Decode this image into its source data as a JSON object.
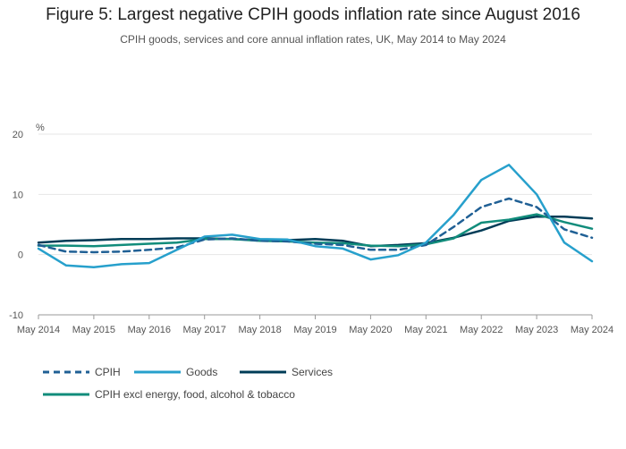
{
  "header": {
    "title": "Figure 5: Largest negative CPIH goods inflation rate since August 2016",
    "subtitle": "CPIH goods, services and core annual inflation rates, UK, May 2014 to May 2024"
  },
  "colors": {
    "cpih": "#206095",
    "goods": "#27a0cc",
    "services": "#003c57",
    "core": "#118c7b",
    "grid": "#e6e6e6",
    "axis": "#999999"
  },
  "chart_data": {
    "type": "line",
    "title": "Figure 5: Largest negative CPIH goods inflation rate since August 2016",
    "subtitle": "CPIH goods, services and core annual inflation rates, UK, May 2014 to May 2024",
    "ylabel": "%",
    "xlabel": "",
    "ylim": [
      -10,
      20
    ],
    "yticks": [
      "20",
      "10",
      "0",
      "-10"
    ],
    "xticks": [
      "May 2014",
      "May 2015",
      "May 2016",
      "May 2017",
      "May 2018",
      "May 2019",
      "May 2020",
      "May 2021",
      "May 2022",
      "May 2023",
      "May 2024"
    ],
    "grid": true,
    "legend_position": "bottom",
    "x_note": "Six-monthly points, May 2014 to May 2024 (May and November each year)",
    "series": [
      {
        "name": "CPIH",
        "style": "dashed",
        "values": [
          1.6,
          0.5,
          0.4,
          0.5,
          0.8,
          1.2,
          2.5,
          2.7,
          2.3,
          2.2,
          1.8,
          1.6,
          0.8,
          0.8,
          1.6,
          4.6,
          7.9,
          9.3,
          7.9,
          4.2,
          2.8
        ]
      },
      {
        "name": "Goods",
        "style": "solid",
        "values": [
          1.0,
          -1.8,
          -2.1,
          -1.6,
          -1.4,
          0.8,
          3.0,
          3.3,
          2.6,
          2.5,
          1.4,
          1.0,
          -0.8,
          -0.1,
          2.0,
          6.6,
          12.4,
          14.9,
          10.0,
          2.0,
          -1.1
        ]
      },
      {
        "name": "Services",
        "style": "solid",
        "values": [
          2.0,
          2.3,
          2.4,
          2.6,
          2.6,
          2.7,
          2.7,
          2.6,
          2.4,
          2.4,
          2.6,
          2.3,
          1.4,
          1.6,
          1.9,
          2.8,
          4.0,
          5.6,
          6.3,
          6.3,
          6.0
        ]
      },
      {
        "name": "CPIH excl energy, food, alcohol & tobacco",
        "style": "solid",
        "values": [
          1.5,
          1.5,
          1.4,
          1.6,
          1.8,
          2.0,
          2.6,
          2.6,
          2.3,
          2.2,
          2.0,
          1.9,
          1.5,
          1.4,
          1.7,
          2.7,
          5.3,
          5.8,
          6.7,
          5.4,
          4.3
        ]
      }
    ]
  }
}
